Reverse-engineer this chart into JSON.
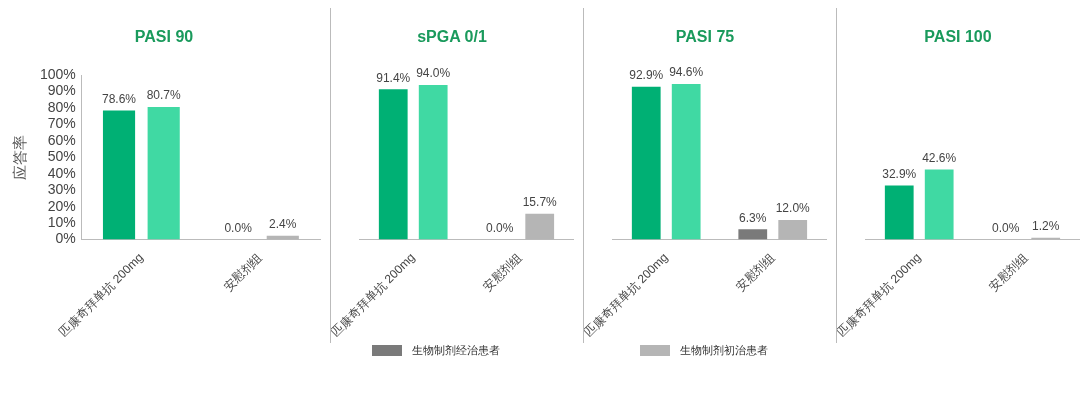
{
  "chart_data": [
    {
      "type": "bar",
      "title": "PASI 90",
      "ylabel": "应答率",
      "categories": [
        "匹康奇拜单抗 200mg",
        "安慰剂组"
      ],
      "ylim": [
        0,
        100
      ],
      "yticks": [
        {
          "value": 0,
          "label": "0%"
        },
        {
          "value": 10,
          "label": "10%"
        },
        {
          "value": 20,
          "label": "20%"
        },
        {
          "value": 30,
          "label": "30%"
        },
        {
          "value": 40,
          "label": "40%"
        },
        {
          "value": 50,
          "label": "50%"
        },
        {
          "value": 60,
          "label": "60%"
        },
        {
          "value": 70,
          "label": "70%"
        },
        {
          "value": 80,
          "label": "80%"
        },
        {
          "value": 90,
          "label": "90%"
        },
        {
          "value": 100,
          "label": "100%"
        }
      ],
      "series": [
        {
          "colors": [
            "#00b074",
            "#7a7a7a"
          ],
          "values": [
            78.6,
            0.0
          ],
          "value_labels": [
            "78.6%",
            "0.0%"
          ]
        },
        {
          "colors": [
            "#40d9a3",
            "#b5b5b5"
          ],
          "values": [
            80.7,
            2.4
          ],
          "value_labels": [
            "80.7%",
            "2.4%"
          ]
        }
      ]
    },
    {
      "type": "bar",
      "title": "sPGA 0/1",
      "categories": [
        "匹康奇拜单抗 200mg",
        "安慰剂组"
      ],
      "ylim": [
        0,
        100
      ],
      "tick_labels": "x",
      "series": [
        {
          "colors": [
            "#00b074",
            "#7a7a7a"
          ],
          "values": [
            91.4,
            0.0
          ],
          "value_labels": [
            "91.4%",
            "0.0%"
          ]
        },
        {
          "colors": [
            "#40d9a3",
            "#b5b5b5"
          ],
          "values": [
            94.0,
            15.7
          ],
          "value_labels": [
            "94.0%",
            "15.7%"
          ]
        }
      ]
    },
    {
      "type": "bar",
      "title": "PASI 75",
      "categories": [
        "匹康奇拜单抗 200mg",
        "安慰剂组"
      ],
      "ylim": [
        0,
        100
      ],
      "tick_labels": "x",
      "legend": "bottom",
      "series": [
        {
          "name": "生物制剂经治患者",
          "color": "#7a7a7a",
          "colors": [
            "#00b074",
            "#7a7a7a"
          ],
          "values": [
            92.9,
            6.3
          ],
          "value_labels": [
            "92.9%",
            "6.3%"
          ]
        },
        {
          "name": "生物制剂初治患者",
          "color": "#b5b5b5",
          "colors": [
            "#40d9a3",
            "#b5b5b5"
          ],
          "values": [
            94.6,
            12.0
          ],
          "value_labels": [
            "94.6%",
            "12.0%"
          ]
        }
      ]
    },
    {
      "type": "bar",
      "title": "PASI 100",
      "categories": [
        "匹康奇拜单抗 200mg",
        "安慰剂组"
      ],
      "ylim": [
        0,
        100
      ],
      "tick_labels": "x",
      "series": [
        {
          "colors": [
            "#00b074",
            "#7a7a7a"
          ],
          "values": [
            32.9,
            0.0
          ],
          "value_labels": [
            "32.9%",
            "0.0%"
          ]
        },
        {
          "colors": [
            "#40d9a3",
            "#b5b5b5"
          ],
          "values": [
            42.6,
            1.2
          ],
          "value_labels": [
            "42.6%",
            "1.2%"
          ]
        }
      ]
    }
  ]
}
